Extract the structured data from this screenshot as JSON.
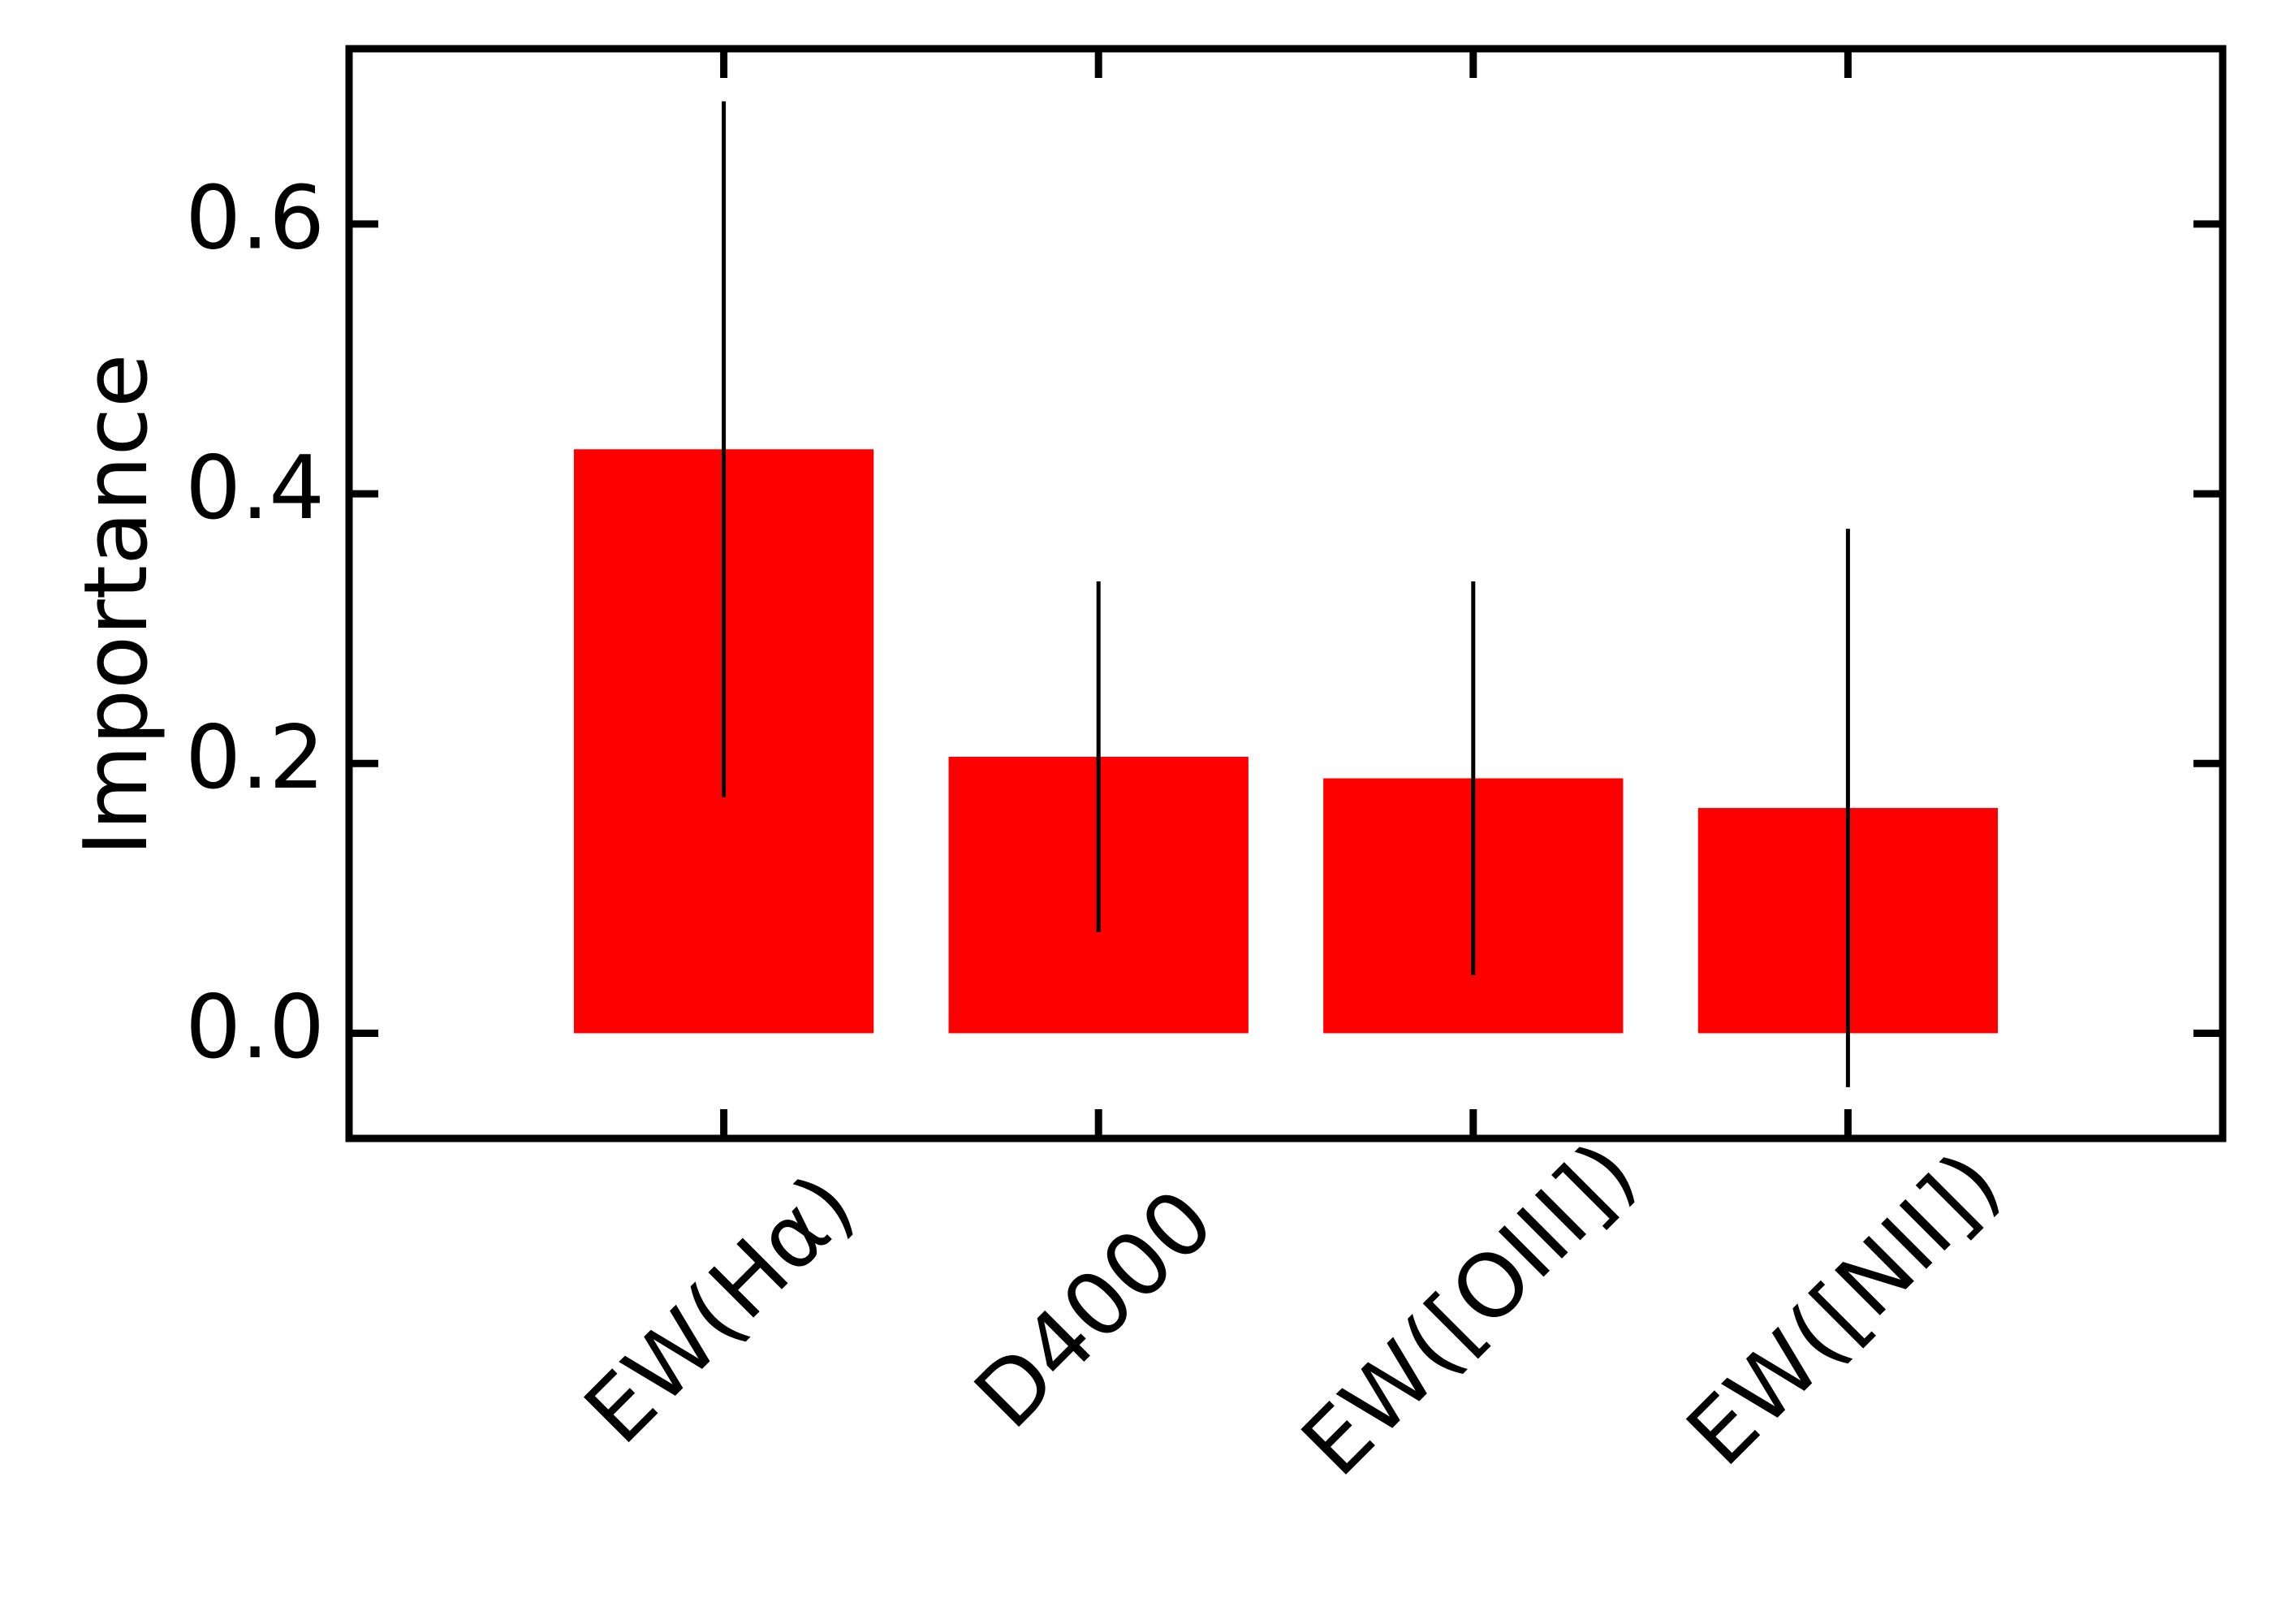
{
  "chart_data": {
    "type": "bar",
    "y_label": "Importance",
    "categories": [
      "EW(Hα)",
      "D4000",
      "EW([OIII])",
      "EW([NII])"
    ],
    "values": [
      0.433,
      0.205,
      0.189,
      0.167
    ],
    "errors": [
      0.258,
      0.13,
      0.146,
      0.207
    ],
    "color": "#ff0000",
    "error_color": "#000000",
    "xlim": [
      -1,
      4
    ],
    "ylim": [
      -0.078,
      0.73
    ],
    "yticks": [
      {
        "value": 0,
        "label": "0.0"
      },
      {
        "value": 0.2,
        "label": "0.2"
      },
      {
        "value": 0.4,
        "label": "0.4"
      },
      {
        "value": 0.6,
        "label": "0.6"
      }
    ],
    "bar_width": 0.8,
    "grid": false
  }
}
